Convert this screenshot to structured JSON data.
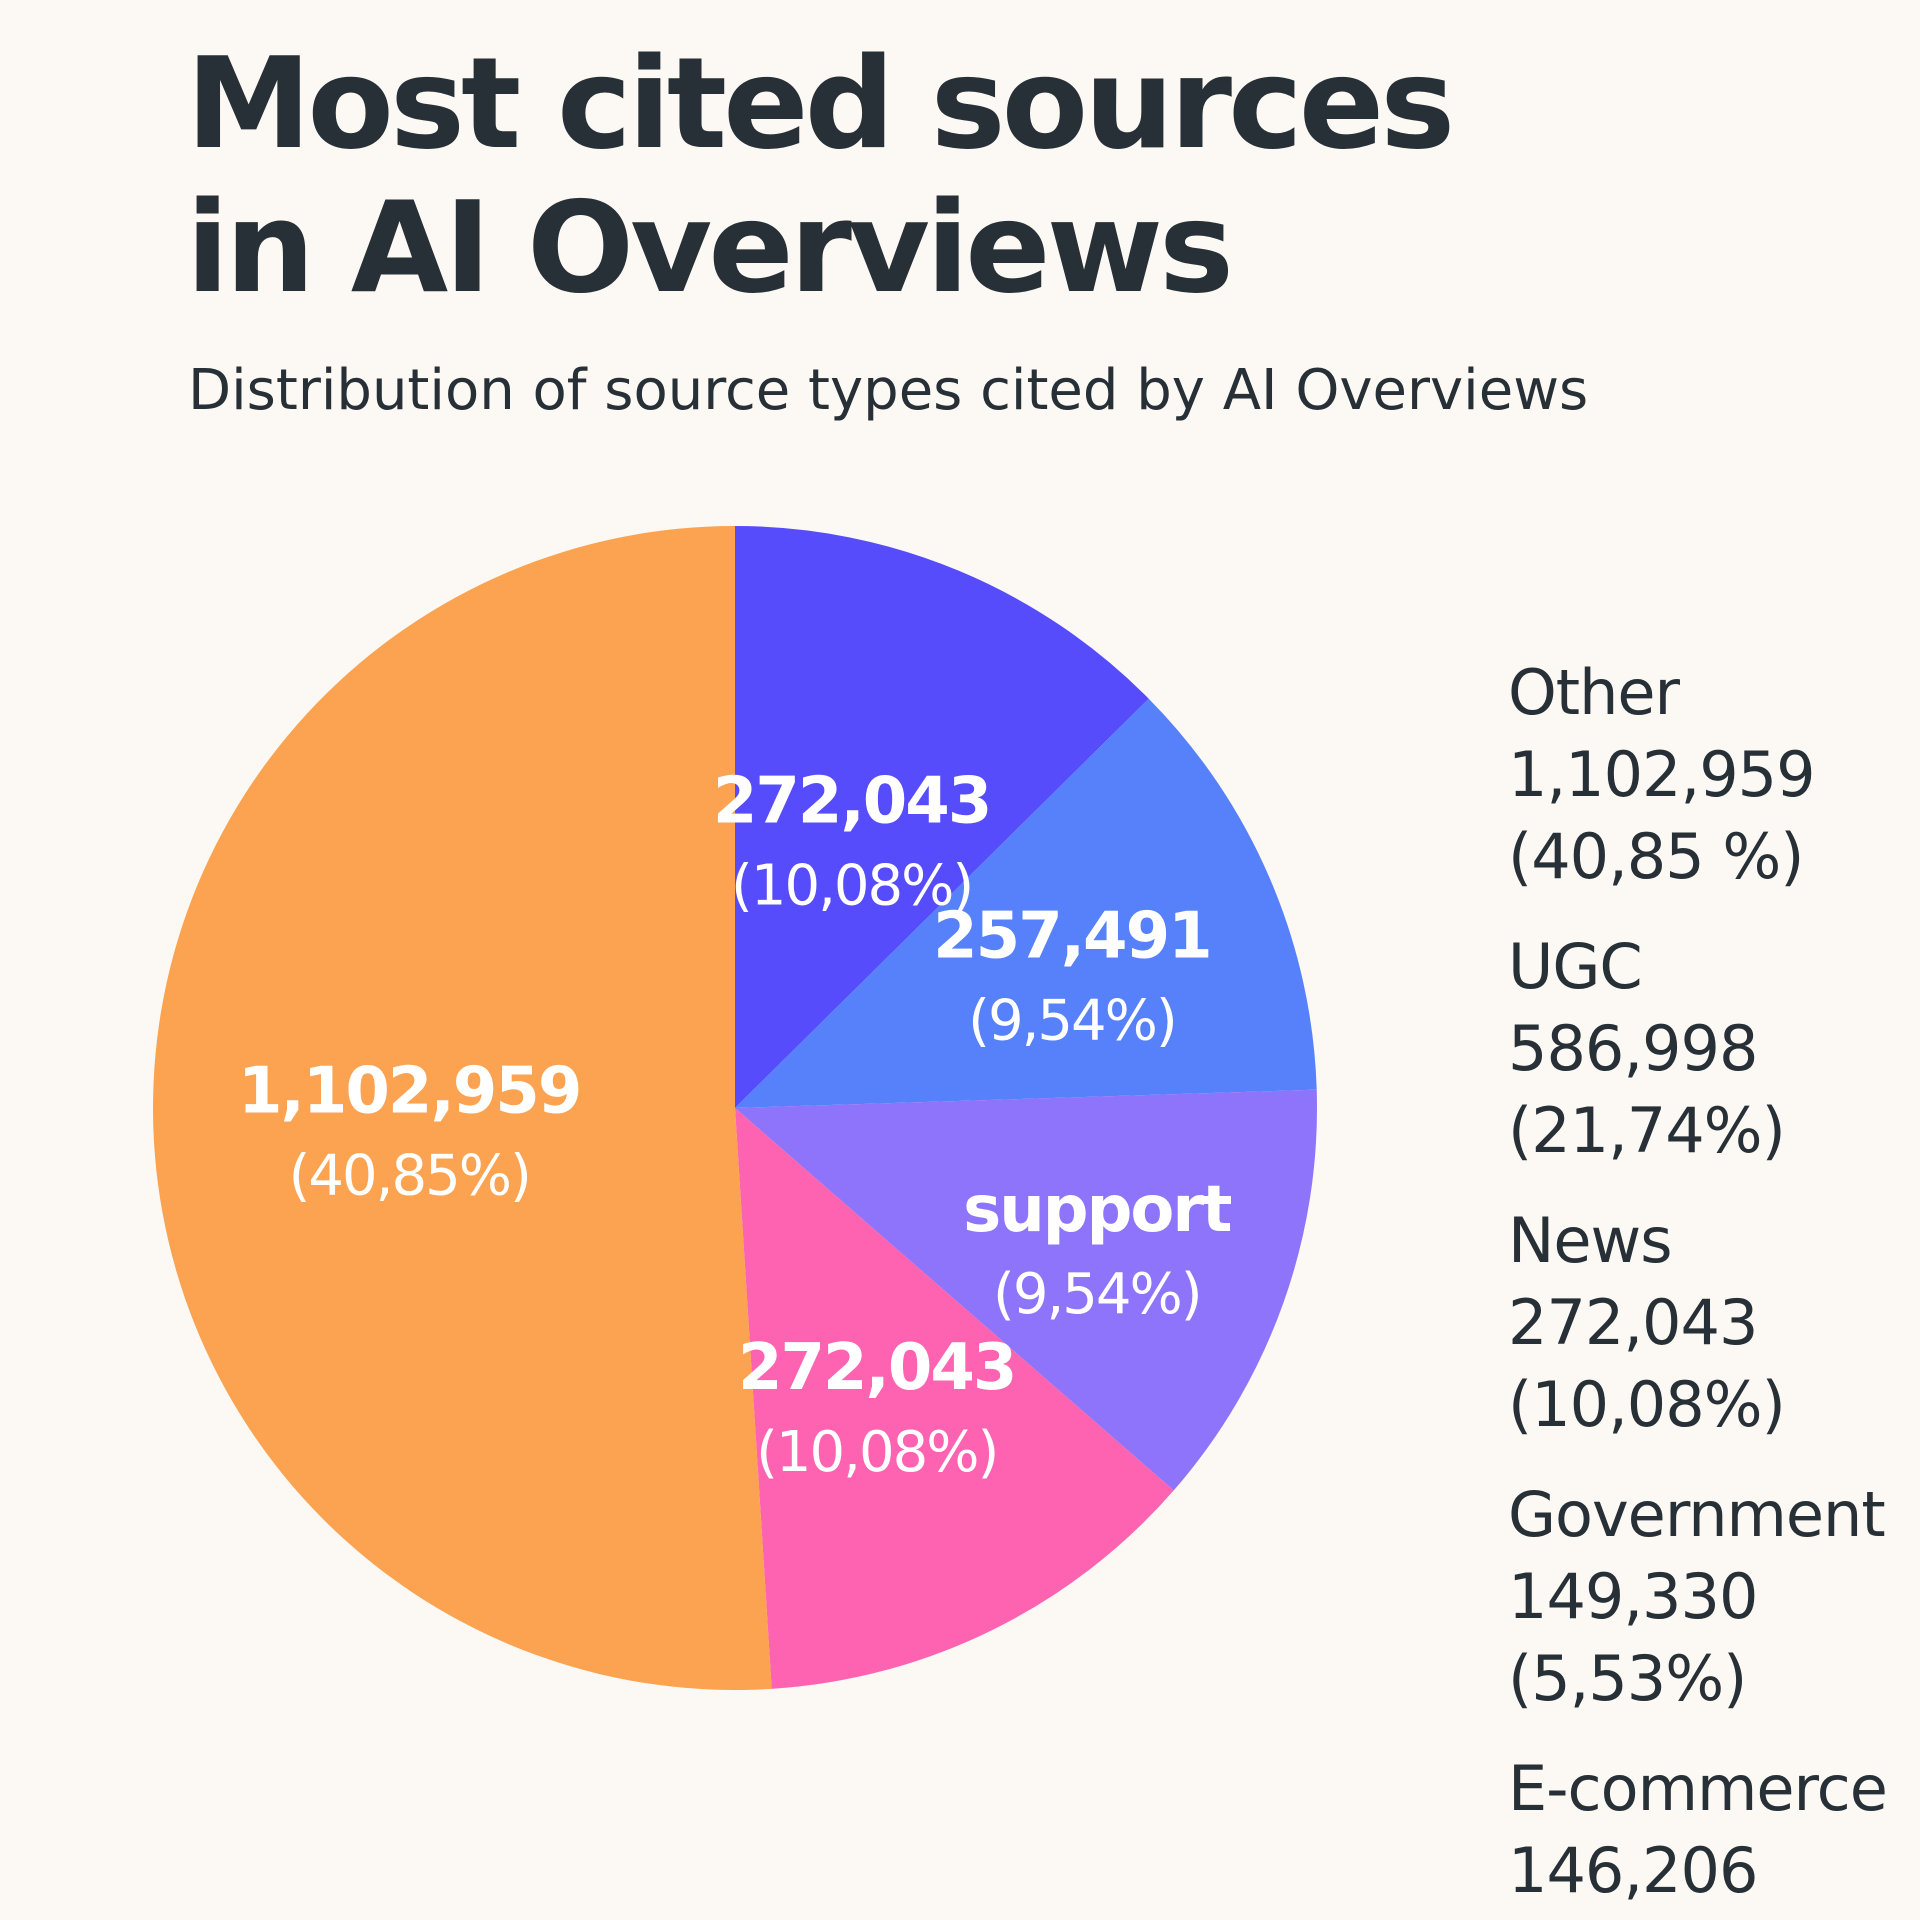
{
  "title": "Most cited sources in AI Overviews",
  "subtitle": "Distribution of source types cited by AI Overviews",
  "chart_data": {
    "type": "pie",
    "title": "Most cited sources in AI Overviews",
    "subtitle": "Distribution of source types cited by AI Overviews",
    "legend_placement": "right",
    "slices": [
      {
        "value_label": "272,043",
        "pct_label": "(10,08%)",
        "percent": 10.08,
        "color": "#574cfc"
      },
      {
        "value_label": "257,491",
        "pct_label": "(9,54%)",
        "percent": 9.54,
        "color": "#5780fb"
      },
      {
        "value_label": "support",
        "pct_label": "(9,54%)",
        "percent": 9.54,
        "color": "#8d74fb"
      },
      {
        "value_label": "272,043",
        "pct_label": "(10,08%)",
        "percent": 10.08,
        "color": "#fd63b0"
      },
      {
        "value_label": "1,102,959",
        "pct_label": "(40,85%)",
        "percent": 40.85,
        "color": "#fba351"
      }
    ],
    "legend": [
      {
        "name": "Other",
        "value": "1,102,959",
        "pct": "(40,85 %)"
      },
      {
        "name": "UGC",
        "value": "586,998",
        "pct": "(21,74%)"
      },
      {
        "name": "News",
        "value": "272,043",
        "pct": "(10,08%)"
      },
      {
        "name": "Government",
        "value": "149,330",
        "pct": "(5,53%)"
      },
      {
        "name": "E-commerce",
        "value": "146,206",
        "pct": ""
      }
    ]
  }
}
